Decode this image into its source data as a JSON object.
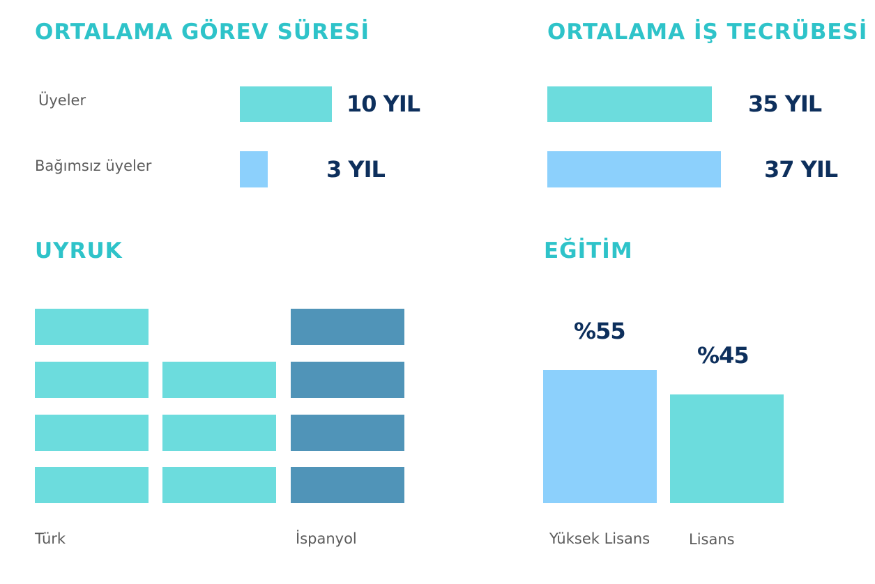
{
  "colors": {
    "heading": "#2ec3c9",
    "value_text": "#0d2f5c",
    "label_text": "#5b5b5b",
    "teal": "#6cdcdd",
    "sky": "#8cd0fc",
    "steel": "#5094b8"
  },
  "tenure": {
    "title": "ORTALAMA GÖREV SÜRESİ",
    "rows": [
      {
        "label": "Üyeler",
        "value_label": "10 YIL"
      },
      {
        "label": "Bağımsız üyeler",
        "value_label": "3 YIL"
      }
    ]
  },
  "experience": {
    "title": "ORTALAMA İŞ TECRÜBESİ",
    "rows": [
      {
        "value_label": "35 YIL"
      },
      {
        "value_label": "37 YIL"
      }
    ]
  },
  "nationality": {
    "title": "UYRUK",
    "labels": [
      "Türk",
      "İspanyol"
    ]
  },
  "education": {
    "title": "EĞİTİM",
    "value_labels": [
      "%55",
      "%45"
    ],
    "category_labels": [
      "Yüksek Lisans",
      "Lisans"
    ]
  },
  "chart_data": [
    {
      "type": "bar",
      "orientation": "horizontal",
      "title": "ORTALAMA GÖREV SÜRESİ",
      "categories": [
        "Üyeler",
        "Bağımsız üyeler"
      ],
      "values": [
        10,
        3
      ],
      "unit": "YIL",
      "colors": [
        "#6cdcdd",
        "#8cd0fc"
      ]
    },
    {
      "type": "bar",
      "orientation": "horizontal",
      "title": "ORTALAMA İŞ TECRÜBESİ",
      "categories": [
        "Üyeler",
        "Bağımsız üyeler"
      ],
      "values": [
        35,
        37
      ],
      "unit": "YIL",
      "colors": [
        "#6cdcdd",
        "#8cd0fc"
      ]
    },
    {
      "type": "bar",
      "title": "UYRUK",
      "categories": [
        "Türk",
        "İspanyol"
      ],
      "columns": [
        {
          "label": "Türk",
          "blocks": 4,
          "color": "#6cdcdd"
        },
        {
          "label": "",
          "blocks": 3,
          "color": "#6cdcdd"
        },
        {
          "label": "İspanyol",
          "blocks": 4,
          "color": "#5094b8"
        }
      ]
    },
    {
      "type": "bar",
      "title": "EĞİTİM",
      "categories": [
        "Yüksek Lisans",
        "Lisans"
      ],
      "values": [
        55,
        45
      ],
      "unit": "%",
      "colors": [
        "#8cd0fc",
        "#6cdcdd"
      ]
    }
  ]
}
